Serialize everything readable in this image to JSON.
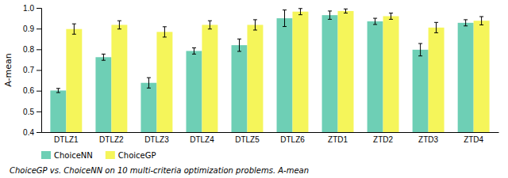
{
  "chart_data": {
    "type": "bar",
    "ylabel": "A-mean",
    "caption": "ChoiceGP vs. ChoiceNN on 10 multi-criteria optimization problems. A-mean",
    "categories": [
      "DTLZ1",
      "DTLZ2",
      "DTLZ3",
      "DTLZ4",
      "DTLZ5",
      "DTLZ6",
      "ZTD1",
      "ZTD2",
      "ZTD3",
      "ZTD4"
    ],
    "series": [
      {
        "name": "ChoiceNN",
        "color": "#6ECFB5",
        "values": [
          0.601,
          0.762,
          0.638,
          0.792,
          0.82,
          0.95,
          0.965,
          0.935,
          0.798,
          0.928
        ],
        "errors": [
          0.01,
          0.015,
          0.025,
          0.015,
          0.03,
          0.04,
          0.02,
          0.015,
          0.03,
          0.015
        ]
      },
      {
        "name": "ChoiceGP",
        "color": "#F5F55A",
        "values": [
          0.898,
          0.918,
          0.884,
          0.918,
          0.918,
          0.982,
          0.985,
          0.96,
          0.905,
          0.938
        ],
        "errors": [
          0.025,
          0.02,
          0.025,
          0.02,
          0.025,
          0.015,
          0.01,
          0.015,
          0.025,
          0.02
        ]
      }
    ],
    "ylim": [
      0.4,
      1.0
    ],
    "yticks": [
      0.4,
      0.5,
      0.6,
      0.7,
      0.8,
      0.9,
      {
        "value": 1.0,
        "label": "1.0"
      }
    ],
    "legend": "lower left",
    "grid": false
  }
}
